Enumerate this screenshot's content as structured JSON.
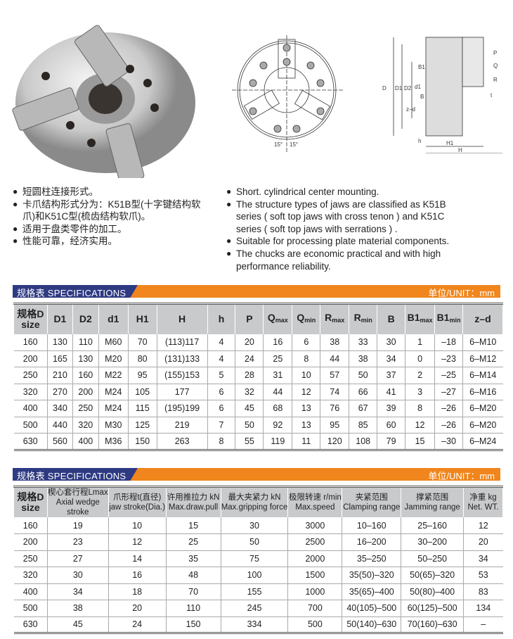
{
  "drawing_labels": {
    "angle_left": "15°",
    "angle_right": "15°",
    "D": "D",
    "D1": "D1",
    "D2": "D2",
    "d1": "d1",
    "B1": "B1",
    "B": "B",
    "zd": "z–d",
    "h": "h",
    "t": "t",
    "H1": "H1",
    "H": "H",
    "P": "P",
    "Q": "Q",
    "R": "R"
  },
  "features_cn": [
    "短圆柱连接形式。",
    "卡爪结构形式分为：K51B型(十字键结构软爪)和K51C型(梳齿结构软爪)。",
    "适用于盘类零件的加工。",
    "性能可靠，经济实用。"
  ],
  "features_en": [
    "Short. cylindrical center mounting.",
    "The structure types of jaws are classified as K51B series ( soft top jaws with cross tenon ) and K51C series ( soft top jaws with serrations ) .",
    "Suitable for processing plate material components.",
    "The chucks are economic practical and with high performance reliability."
  ],
  "colors": {
    "bar_orange": "#f0861d",
    "bar_navy": "#2e3a82",
    "header_gray": "#c9cacc"
  },
  "spec1": {
    "title": "规格表  SPECIFICATIONS",
    "unit": "单位/UNIT：mm",
    "headers": [
      [
        "规格D",
        "size"
      ],
      [
        "D1",
        ""
      ],
      [
        "D2",
        ""
      ],
      [
        "d1",
        ""
      ],
      [
        "H1",
        ""
      ],
      [
        "H",
        ""
      ],
      [
        "h",
        ""
      ],
      [
        "P",
        ""
      ],
      [
        "Q",
        "max"
      ],
      [
        "Q",
        "min"
      ],
      [
        "R",
        "max"
      ],
      [
        "R",
        "min"
      ],
      [
        "B",
        ""
      ],
      [
        "B1",
        "max"
      ],
      [
        "B1",
        "min"
      ],
      [
        "z–d",
        ""
      ]
    ],
    "rows": [
      [
        "160",
        "130",
        "110",
        "M60",
        "70",
        "(113)117",
        "4",
        "20",
        "16",
        "6",
        "38",
        "33",
        "30",
        "1",
        "–18",
        "6–M10"
      ],
      [
        "200",
        "165",
        "130",
        "M20",
        "80",
        "(131)133",
        "4",
        "24",
        "25",
        "8",
        "44",
        "38",
        "34",
        "0",
        "–23",
        "6–M12"
      ],
      [
        "250",
        "210",
        "160",
        "M22",
        "95",
        "(155)153",
        "5",
        "28",
        "31",
        "10",
        "57",
        "50",
        "37",
        "2",
        "–25",
        "6–M14"
      ],
      [
        "320",
        "270",
        "200",
        "M24",
        "105",
        "177",
        "6",
        "32",
        "44",
        "12",
        "74",
        "66",
        "41",
        "3",
        "–27",
        "6–M16"
      ],
      [
        "400",
        "340",
        "250",
        "M24",
        "115",
        "(195)199",
        "6",
        "45",
        "68",
        "13",
        "76",
        "67",
        "39",
        "8",
        "–26",
        "6–M20"
      ],
      [
        "500",
        "440",
        "320",
        "M30",
        "125",
        "219",
        "7",
        "50",
        "92",
        "13",
        "95",
        "85",
        "60",
        "12",
        "–26",
        "6–M20"
      ],
      [
        "630",
        "560",
        "400",
        "M36",
        "150",
        "263",
        "8",
        "55",
        "119",
        "11",
        "120",
        "108",
        "79",
        "15",
        "–30",
        "6–M24"
      ]
    ]
  },
  "spec2": {
    "title": "规格表  SPECIFICATIONS",
    "unit": "单位/UNIT：mm",
    "headers": [
      [
        "规格D",
        "size"
      ],
      [
        "楔心套行程Lmax",
        "Axial wedge stroke"
      ],
      [
        "爪形程t(直径)",
        "jaw stroke(Dia.)"
      ],
      [
        "许用推拉力 kN",
        "Max.draw.pull"
      ],
      [
        "最大夹紧力 kN",
        "Max.gripping force"
      ],
      [
        "极限转速 r/min",
        "Max.speed"
      ],
      [
        "夹紧范围",
        "Clamping range"
      ],
      [
        "撑紧范围",
        "Jamming range"
      ],
      [
        "净重 kg",
        "Net. WT."
      ]
    ],
    "rows": [
      [
        "160",
        "19",
        "10",
        "15",
        "30",
        "3000",
        "10–160",
        "25–160",
        "12"
      ],
      [
        "200",
        "23",
        "12",
        "25",
        "50",
        "2500",
        "16–200",
        "30–200",
        "20"
      ],
      [
        "250",
        "27",
        "14",
        "35",
        "75",
        "2000",
        "35–250",
        "50–250",
        "34"
      ],
      [
        "320",
        "30",
        "16",
        "48",
        "100",
        "1500",
        "35(50)–320",
        "50(65)–320",
        "53"
      ],
      [
        "400",
        "34",
        "18",
        "70",
        "155",
        "1000",
        "35(65)–400",
        "50(80)–400",
        "83"
      ],
      [
        "500",
        "38",
        "20",
        "110",
        "245",
        "700",
        "40(105)–500",
        "60(125)–500",
        "134"
      ],
      [
        "630",
        "45",
        "24",
        "150",
        "334",
        "500",
        "50(140)–630",
        "70(160)–630",
        "–"
      ]
    ]
  }
}
